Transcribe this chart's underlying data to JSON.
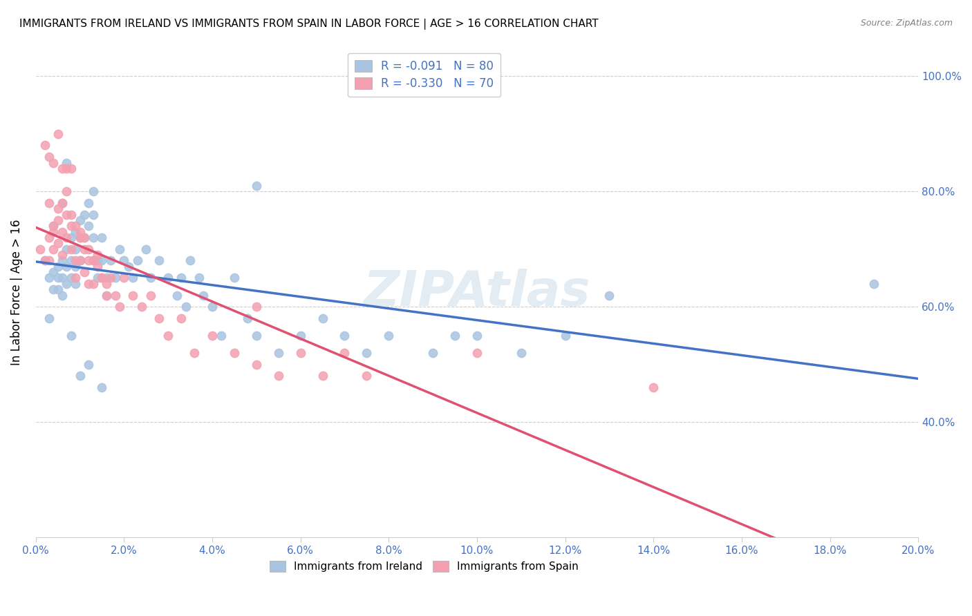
{
  "title": "IMMIGRANTS FROM IRELAND VS IMMIGRANTS FROM SPAIN IN LABOR FORCE | AGE > 16 CORRELATION CHART",
  "source": "Source: ZipAtlas.com",
  "ylabel": "In Labor Force | Age > 16",
  "xlim": [
    0.0,
    0.2
  ],
  "ylim": [
    0.2,
    1.05
  ],
  "xticks": [
    0.0,
    0.02,
    0.04,
    0.06,
    0.08,
    0.1,
    0.12,
    0.14,
    0.16,
    0.18,
    0.2
  ],
  "ireland_color": "#a8c4e0",
  "spain_color": "#f4a0b0",
  "ireland_line_color": "#4472c4",
  "spain_line_color": "#e05070",
  "legend_text_color": "#4472c4",
  "axis_label_color": "#4472c4",
  "R_ireland": -0.091,
  "N_ireland": 80,
  "R_spain": -0.33,
  "N_spain": 70,
  "watermark": "ZIPAtlas",
  "ireland_scatter_x": [
    0.002,
    0.003,
    0.004,
    0.004,
    0.005,
    0.005,
    0.005,
    0.006,
    0.006,
    0.006,
    0.007,
    0.007,
    0.007,
    0.008,
    0.008,
    0.008,
    0.009,
    0.009,
    0.009,
    0.009,
    0.01,
    0.01,
    0.01,
    0.011,
    0.011,
    0.012,
    0.012,
    0.013,
    0.013,
    0.013,
    0.014,
    0.014,
    0.015,
    0.015,
    0.016,
    0.016,
    0.017,
    0.018,
    0.019,
    0.02,
    0.021,
    0.022,
    0.023,
    0.025,
    0.026,
    0.028,
    0.03,
    0.032,
    0.033,
    0.034,
    0.035,
    0.037,
    0.038,
    0.04,
    0.042,
    0.045,
    0.048,
    0.05,
    0.055,
    0.06,
    0.065,
    0.07,
    0.075,
    0.08,
    0.09,
    0.095,
    0.1,
    0.11,
    0.12,
    0.13,
    0.003,
    0.004,
    0.006,
    0.007,
    0.008,
    0.01,
    0.012,
    0.015,
    0.19,
    0.05
  ],
  "ireland_scatter_y": [
    0.68,
    0.65,
    0.66,
    0.63,
    0.67,
    0.65,
    0.63,
    0.68,
    0.65,
    0.62,
    0.7,
    0.67,
    0.64,
    0.72,
    0.68,
    0.65,
    0.73,
    0.7,
    0.67,
    0.64,
    0.75,
    0.72,
    0.68,
    0.76,
    0.72,
    0.78,
    0.74,
    0.8,
    0.76,
    0.72,
    0.68,
    0.65,
    0.72,
    0.68,
    0.65,
    0.62,
    0.68,
    0.65,
    0.7,
    0.68,
    0.67,
    0.65,
    0.68,
    0.7,
    0.65,
    0.68,
    0.65,
    0.62,
    0.65,
    0.6,
    0.68,
    0.65,
    0.62,
    0.6,
    0.55,
    0.65,
    0.58,
    0.55,
    0.52,
    0.55,
    0.58,
    0.55,
    0.52,
    0.55,
    0.52,
    0.55,
    0.55,
    0.52,
    0.55,
    0.62,
    0.58,
    0.74,
    0.78,
    0.85,
    0.55,
    0.48,
    0.5,
    0.46,
    0.64,
    0.81
  ],
  "spain_scatter_x": [
    0.001,
    0.002,
    0.003,
    0.003,
    0.004,
    0.004,
    0.005,
    0.005,
    0.006,
    0.006,
    0.007,
    0.007,
    0.008,
    0.008,
    0.009,
    0.009,
    0.01,
    0.01,
    0.011,
    0.011,
    0.012,
    0.012,
    0.013,
    0.013,
    0.014,
    0.015,
    0.016,
    0.017,
    0.018,
    0.019,
    0.02,
    0.022,
    0.024,
    0.026,
    0.028,
    0.03,
    0.033,
    0.036,
    0.04,
    0.045,
    0.05,
    0.055,
    0.06,
    0.065,
    0.07,
    0.075,
    0.003,
    0.004,
    0.005,
    0.006,
    0.007,
    0.008,
    0.009,
    0.01,
    0.011,
    0.012,
    0.013,
    0.014,
    0.015,
    0.016,
    0.05,
    0.1,
    0.14,
    0.002,
    0.003,
    0.004,
    0.005,
    0.006,
    0.007,
    0.008
  ],
  "spain_scatter_y": [
    0.7,
    0.68,
    0.72,
    0.68,
    0.74,
    0.7,
    0.75,
    0.71,
    0.73,
    0.69,
    0.76,
    0.72,
    0.74,
    0.7,
    0.68,
    0.65,
    0.72,
    0.68,
    0.7,
    0.66,
    0.68,
    0.64,
    0.68,
    0.64,
    0.67,
    0.65,
    0.62,
    0.65,
    0.62,
    0.6,
    0.65,
    0.62,
    0.6,
    0.62,
    0.58,
    0.55,
    0.58,
    0.52,
    0.55,
    0.52,
    0.5,
    0.48,
    0.52,
    0.48,
    0.52,
    0.48,
    0.78,
    0.73,
    0.77,
    0.78,
    0.8,
    0.76,
    0.74,
    0.73,
    0.72,
    0.7,
    0.68,
    0.69,
    0.65,
    0.64,
    0.6,
    0.52,
    0.46,
    0.88,
    0.86,
    0.85,
    0.9,
    0.84,
    0.84,
    0.84
  ]
}
